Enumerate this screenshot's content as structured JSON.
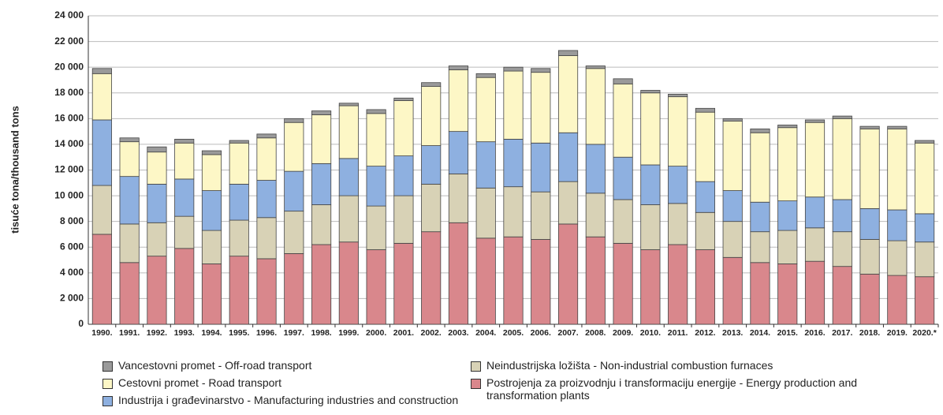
{
  "chart_data": {
    "type": "stacked_bar",
    "y_label": "tisuće tona/thousand tons",
    "categories": [
      "1990.",
      "1991.",
      "1992.",
      "1993.",
      "1994.",
      "1995.",
      "1996.",
      "1997.",
      "1998.",
      "1999.",
      "2000.",
      "2001.",
      "2002.",
      "2003.",
      "2004.",
      "2005.",
      "2006.",
      "2007.",
      "2008.",
      "2009.",
      "2010.",
      "2011.",
      "2012.",
      "2013.",
      "2014.",
      "2015.",
      "2016.",
      "2017.",
      "2018.",
      "2019.",
      "2020.*"
    ],
    "ylim": [
      0,
      24000
    ],
    "yticks": [
      0,
      {
        "value": 2000,
        "label": "2 000"
      },
      {
        "value": 4000,
        "label": "4 000"
      },
      {
        "value": 6000,
        "label": "6 000"
      },
      {
        "value": 8000,
        "label": "8 000"
      },
      {
        "value": 10000,
        "label": "10 000"
      },
      {
        "value": 12000,
        "label": "12 000"
      },
      {
        "value": 14000,
        "label": "14 000"
      },
      {
        "value": 16000,
        "label": "16 000"
      },
      {
        "value": 18000,
        "label": "18 000"
      },
      {
        "value": 20000,
        "label": "20 000"
      },
      {
        "value": 22000,
        "label": "22 000"
      },
      {
        "value": 24000,
        "label": "24 000"
      }
    ],
    "grid": true,
    "series": [
      {
        "name": "Postrojenja za proizvodnju i transformaciju energije - Energy production and transformation plants",
        "color": "#d9878c",
        "values": [
          7000,
          4800,
          5300,
          5900,
          4700,
          5300,
          5100,
          5500,
          6200,
          6400,
          5800,
          6300,
          7200,
          7900,
          6700,
          6800,
          6600,
          7800,
          6800,
          6300,
          5800,
          6200,
          5800,
          5200,
          4800,
          4700,
          4900,
          4500,
          3900,
          3800,
          3700
        ]
      },
      {
        "name": "Neindustrijska ložišta - Non-industrial combustion furnaces",
        "color": "#d8d2b6",
        "values": [
          3800,
          3000,
          2600,
          2500,
          2600,
          2800,
          3200,
          3300,
          3100,
          3600,
          3400,
          3700,
          3700,
          3800,
          3900,
          3900,
          3700,
          3300,
          3400,
          3400,
          3500,
          3200,
          2900,
          2800,
          2400,
          2600,
          2600,
          2700,
          2700,
          2700,
          2700
        ]
      },
      {
        "name": "Industrija i građevinarstvo - Manufacturing industries and construction",
        "color": "#8eb0e0",
        "values": [
          5100,
          3700,
          3000,
          2900,
          3100,
          2800,
          2900,
          3100,
          3200,
          2900,
          3100,
          3100,
          3000,
          3300,
          3600,
          3700,
          3800,
          3800,
          3800,
          3300,
          3100,
          2900,
          2400,
          2400,
          2300,
          2300,
          2400,
          2500,
          2400,
          2400,
          2200
        ]
      },
      {
        "name": "Cestovni promet - Road transport",
        "color": "#fdf7c6",
        "values": [
          3600,
          2700,
          2500,
          2800,
          2800,
          3200,
          3300,
          3800,
          3800,
          4100,
          4100,
          4300,
          4600,
          4800,
          5000,
          5300,
          5500,
          6000,
          5900,
          5700,
          5600,
          5400,
          5400,
          5400,
          5400,
          5700,
          5800,
          6300,
          6200,
          6300,
          5500
        ]
      },
      {
        "name": "Vancestovni promet - Off-road transport",
        "color": "#9a9a9a",
        "values": [
          400,
          300,
          400,
          300,
          300,
          200,
          300,
          300,
          300,
          200,
          300,
          200,
          300,
          300,
          300,
          300,
          300,
          400,
          200,
          400,
          200,
          200,
          300,
          200,
          300,
          200,
          200,
          200,
          200,
          200,
          200
        ]
      }
    ]
  }
}
